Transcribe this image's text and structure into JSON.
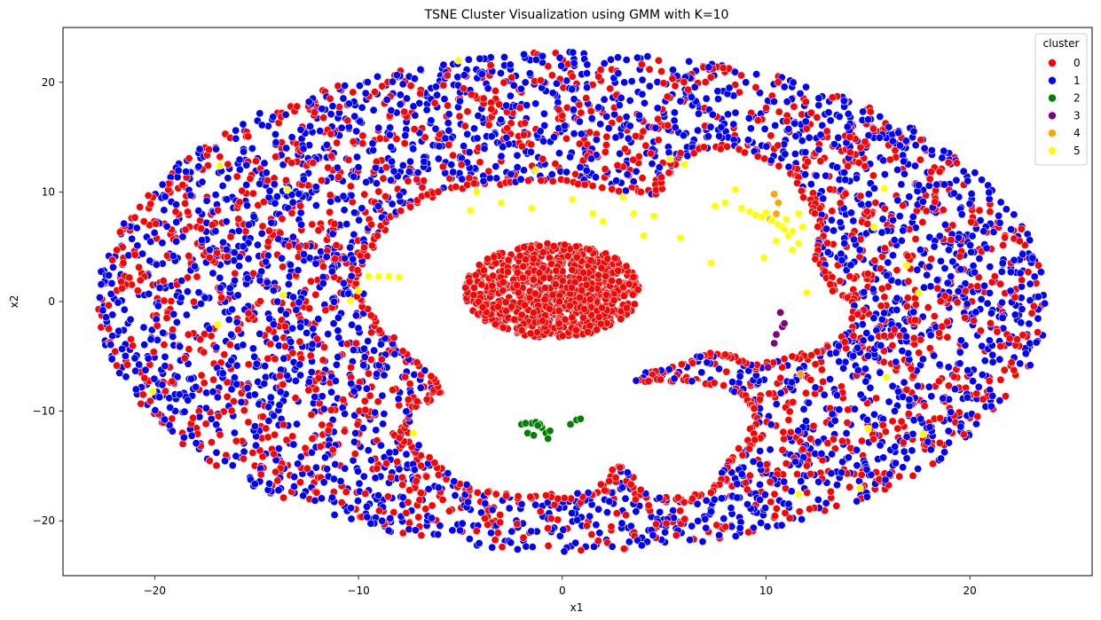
{
  "chart_data": {
    "type": "scatter",
    "title": "TSNE Cluster Visualization using GMM with K=10",
    "xlabel": "x1",
    "ylabel": "x2",
    "xlim": [
      -24.5,
      26.0
    ],
    "ylim": [
      -25.0,
      25.0
    ],
    "x_ticks": [
      -20,
      -10,
      0,
      10,
      20
    ],
    "y_ticks": [
      -20,
      -10,
      0,
      10,
      20
    ],
    "grid": false,
    "legend": {
      "title": "cluster",
      "placement": "top-right"
    },
    "marker_edge_color": "#ffffff",
    "series": [
      {
        "name": "0",
        "color": "#ff0000"
      },
      {
        "name": "1",
        "color": "#0000ff"
      },
      {
        "name": "2",
        "color": "#008000"
      },
      {
        "name": "3",
        "color": "#800080"
      },
      {
        "name": "4",
        "color": "#ffa500"
      },
      {
        "name": "5",
        "color": "#ffff00"
      }
    ],
    "regions": {
      "outer_ring": {
        "center": [
          0.5,
          0.0
        ],
        "rx": 23.3,
        "ry": 22.8,
        "majority_cluster": "1",
        "minority_cluster": "0",
        "minority_share": 0.38
      },
      "inner_void": {
        "outline": [
          [
            -9.5,
            5.0
          ],
          [
            -8.2,
            8.0
          ],
          [
            -6.5,
            9.8
          ],
          [
            -4.0,
            10.8
          ],
          [
            -1.0,
            11.0
          ],
          [
            2.0,
            10.6
          ],
          [
            4.5,
            9.8
          ],
          [
            5.5,
            12.8
          ],
          [
            7.0,
            14.2
          ],
          [
            9.5,
            13.7
          ],
          [
            11.5,
            11.5
          ],
          [
            12.3,
            9.0
          ],
          [
            12.8,
            6.5
          ],
          [
            12.6,
            3.5
          ],
          [
            13.2,
            1.5
          ],
          [
            14.4,
            -0.5
          ],
          [
            14.2,
            -3.0
          ],
          [
            12.8,
            -4.5
          ],
          [
            11.0,
            -5.2
          ],
          [
            9.5,
            -6.0
          ],
          [
            8.3,
            -5.0
          ],
          [
            7.0,
            -4.8
          ],
          [
            6.0,
            -5.8
          ],
          [
            4.5,
            -6.5
          ],
          [
            3.8,
            -7.3
          ],
          [
            6.0,
            -7.0
          ],
          [
            8.5,
            -8.0
          ],
          [
            9.5,
            -10.0
          ],
          [
            9.3,
            -12.5
          ],
          [
            8.3,
            -14.8
          ],
          [
            7.5,
            -17.0
          ],
          [
            6.0,
            -18.2
          ],
          [
            4.0,
            -17.8
          ],
          [
            2.8,
            -15.0
          ],
          [
            2.0,
            -17.3
          ],
          [
            0.0,
            -17.8
          ],
          [
            -2.5,
            -17.8
          ],
          [
            -5.0,
            -16.8
          ],
          [
            -6.5,
            -14.5
          ],
          [
            -7.8,
            -12.5
          ],
          [
            -7.5,
            -10.0
          ],
          [
            -6.0,
            -8.2
          ],
          [
            -7.0,
            -6.0
          ],
          [
            -8.5,
            -3.5
          ],
          [
            -9.8,
            -0.5
          ],
          [
            -10.2,
            2.5
          ]
        ],
        "dominant_border_cluster": "0"
      },
      "inner_core": {
        "center": [
          -0.5,
          1.0
        ],
        "rx": 4.3,
        "ry": 4.3,
        "cluster": "0"
      }
    },
    "points": {
      "cluster_2": [
        [
          -2.0,
          -11.2
        ],
        [
          -1.5,
          -11.1
        ],
        [
          -1.3,
          -11.0
        ],
        [
          -1.7,
          -12.0
        ],
        [
          -1.0,
          -11.5
        ],
        [
          -0.8,
          -12.0
        ],
        [
          -0.6,
          -11.8
        ],
        [
          -0.7,
          -12.5
        ],
        [
          -1.1,
          -11.2
        ],
        [
          -1.8,
          -11.1
        ],
        [
          0.4,
          -11.2
        ],
        [
          0.7,
          -10.8
        ],
        [
          0.9,
          -10.7
        ],
        [
          -1.4,
          -12.2
        ],
        [
          -1.2,
          -11.3
        ]
      ],
      "cluster_3": [
        [
          10.7,
          -1.0
        ],
        [
          10.8,
          -2.3
        ],
        [
          10.5,
          -3.0
        ],
        [
          10.4,
          -3.8
        ],
        [
          10.1,
          -6.0
        ],
        [
          10.9,
          -2.0
        ]
      ],
      "cluster_4": [
        [
          10.4,
          9.8
        ],
        [
          10.6,
          9.0
        ],
        [
          10.5,
          8.0
        ],
        [
          11.7,
          -6.6
        ],
        [
          10.2,
          7.5
        ]
      ],
      "cluster_5": [
        [
          -9.5,
          2.3
        ],
        [
          -9.0,
          2.3
        ],
        [
          -8.5,
          2.3
        ],
        [
          -8.0,
          2.2
        ],
        [
          -4.5,
          8.3
        ],
        [
          -3.0,
          9.0
        ],
        [
          -1.5,
          8.5
        ],
        [
          0.5,
          9.3
        ],
        [
          1.5,
          8.0
        ],
        [
          2.0,
          7.3
        ],
        [
          3.5,
          8.0
        ],
        [
          4.5,
          7.8
        ],
        [
          5.3,
          13.0
        ],
        [
          6.0,
          12.5
        ],
        [
          7.5,
          8.7
        ],
        [
          8.0,
          9.0
        ],
        [
          8.5,
          10.2
        ],
        [
          8.8,
          8.5
        ],
        [
          9.2,
          8.2
        ],
        [
          9.5,
          7.9
        ],
        [
          9.8,
          7.7
        ],
        [
          10.0,
          8.1
        ],
        [
          10.3,
          7.4
        ],
        [
          10.6,
          7.0
        ],
        [
          10.8,
          6.8
        ],
        [
          11.0,
          7.5
        ],
        [
          11.3,
          6.4
        ],
        [
          11.6,
          8.0
        ],
        [
          10.5,
          5.5
        ],
        [
          11.1,
          6.0
        ],
        [
          10.9,
          6.6
        ],
        [
          11.6,
          5.3
        ],
        [
          11.8,
          6.8
        ],
        [
          12.0,
          0.8
        ],
        [
          4.0,
          6.0
        ],
        [
          3.0,
          9.5
        ],
        [
          5.8,
          5.8
        ],
        [
          7.3,
          3.5
        ],
        [
          9.9,
          4.0
        ],
        [
          11.3,
          4.7
        ],
        [
          -13.5,
          10.2
        ],
        [
          -16.8,
          12.4
        ],
        [
          -13.7,
          0.6
        ],
        [
          -10.4,
          0.1
        ],
        [
          -16.9,
          -2.1
        ],
        [
          -20.1,
          -8.2
        ],
        [
          -7.3,
          -12.0
        ],
        [
          -5.1,
          22.0
        ],
        [
          15.0,
          -11.6
        ],
        [
          17.7,
          -12.1
        ],
        [
          14.6,
          -17.0
        ],
        [
          11.6,
          -17.6
        ],
        [
          15.8,
          10.3
        ],
        [
          16.9,
          3.3
        ],
        [
          15.3,
          6.8
        ],
        [
          17.5,
          0.8
        ],
        [
          15.9,
          -6.9
        ],
        [
          -10.0,
          1.0
        ],
        [
          -4.2,
          10.0
        ],
        [
          -1.3,
          12.0
        ]
      ]
    }
  }
}
